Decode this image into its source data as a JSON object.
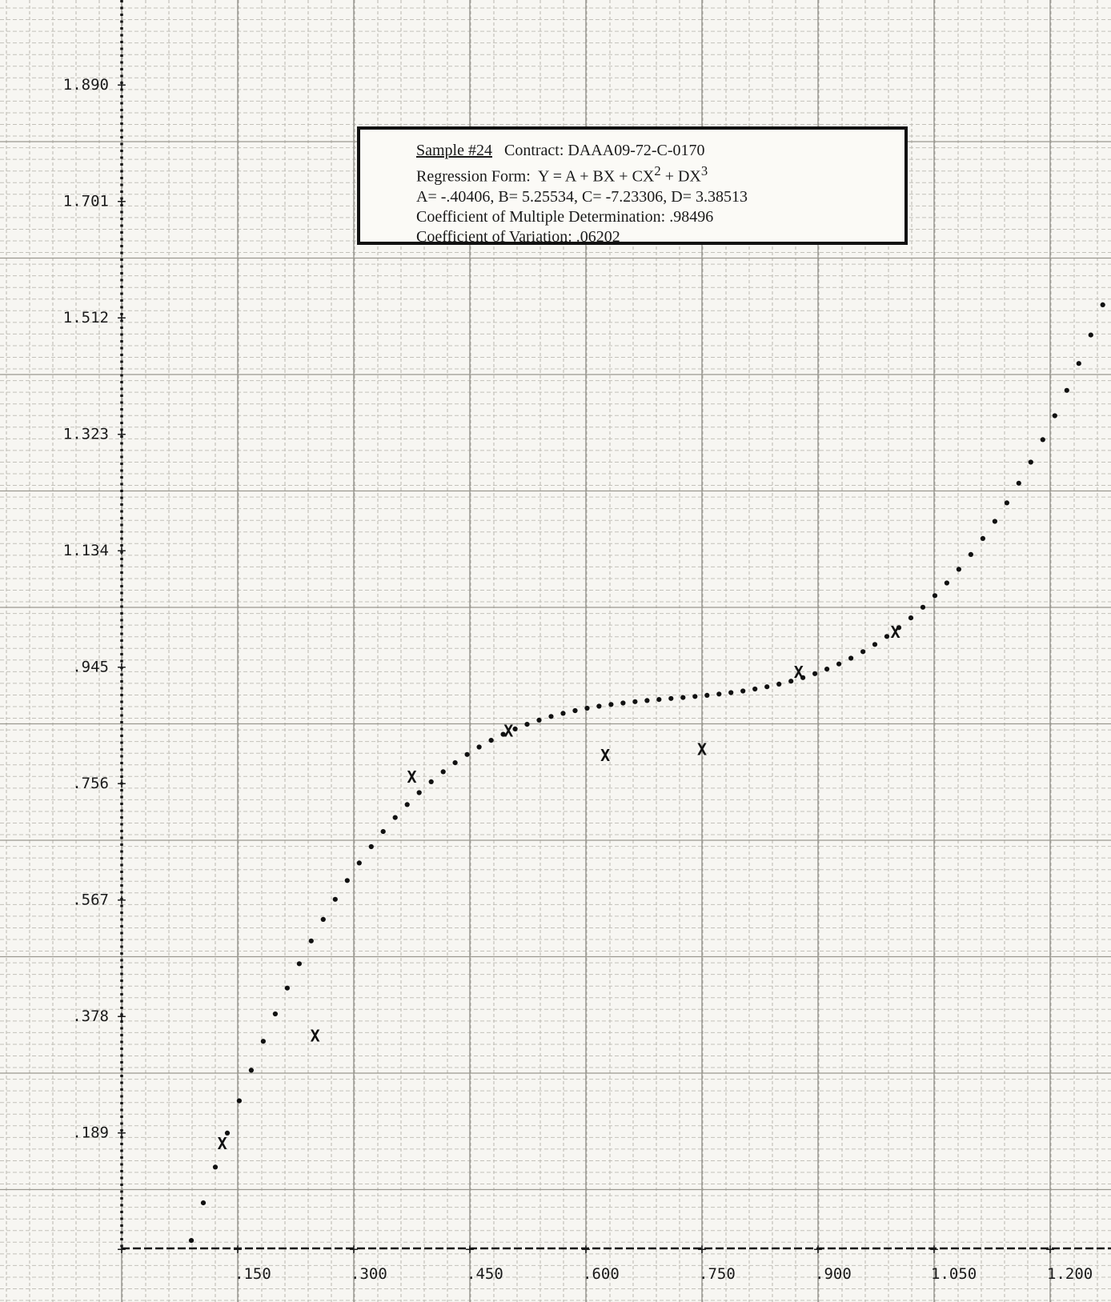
{
  "chart_data": {
    "type": "scatter",
    "title": "",
    "xlabel": "",
    "ylabel": "",
    "grid": true,
    "xlim": [
      -0.15,
      1.28
    ],
    "ylim": [
      -0.012,
      2.06
    ],
    "x_ticks": [
      ".150",
      ".300",
      ".450",
      ".600",
      ".750",
      ".900",
      "1.050",
      "1.200"
    ],
    "x_tick_values": [
      0.15,
      0.3,
      0.45,
      0.6,
      0.75,
      0.9,
      1.05,
      1.2
    ],
    "y_ticks": [
      ".189",
      ".378",
      ".567",
      ".756",
      ".945",
      "1.134",
      "1.323",
      "1.512",
      "1.701",
      "1.890"
    ],
    "y_tick_values": [
      0.189,
      0.378,
      0.567,
      0.756,
      0.945,
      1.134,
      1.323,
      1.512,
      1.701,
      1.89
    ],
    "series": [
      {
        "marker": "x",
        "x": [
          0.13,
          0.25,
          0.375,
          0.5,
          0.625,
          0.75,
          0.875,
          1.0
        ],
        "y": [
          0.17,
          0.345,
          0.765,
          0.84,
          0.8,
          0.81,
          0.935,
          1.0
        ]
      }
    ],
    "fitted_curve": {
      "marker": "dot",
      "coefficients": {
        "A": -0.40406,
        "B": 5.25534,
        "C": -7.23306,
        "D": 3.38513
      },
      "x_start": 0.09,
      "x_end": 1.27,
      "step": 0.0155
    }
  },
  "info_box": {
    "sample": "Sample #24",
    "contract": "Contract: DAAA09-72-C-0170",
    "regression_prefix": "Regression Form:  Y = A + BX + CX",
    "regression_mid": " + DX",
    "exp2": "2",
    "exp3": "3",
    "coefficients": "A= -.40406, B= 5.25534, C= -7.23306, D= 3.38513",
    "determination": "Coefficient of Multiple Determination: .98496",
    "variation": "Coefficient of Variation: .06202"
  }
}
